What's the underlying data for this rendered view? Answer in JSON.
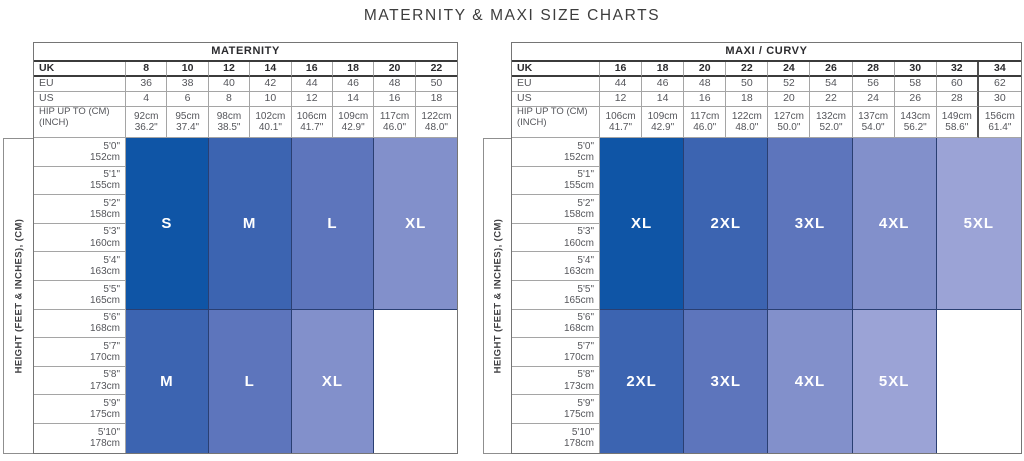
{
  "page": {
    "title": "MATERNITY & MAXI SIZE CHARTS"
  },
  "colors": {
    "size_1": "#0F55A6",
    "size_2": "#3C64B1",
    "size_3": "#5D75BC",
    "size_4": "#8290CB",
    "size_5": "#9BA3D6",
    "block_border": "#2A3F72"
  },
  "chart_data": [
    {
      "type": "table",
      "title": "MATERNITY",
      "size_systems": [
        {
          "label": "UK",
          "values": [
            "8",
            "10",
            "12",
            "14",
            "16",
            "18",
            "20",
            "22"
          ]
        },
        {
          "label": "EU",
          "values": [
            "36",
            "38",
            "40",
            "42",
            "44",
            "46",
            "48",
            "50"
          ]
        },
        {
          "label": "US",
          "values": [
            "4",
            "6",
            "8",
            "10",
            "12",
            "14",
            "16",
            "18"
          ]
        }
      ],
      "hip_label_lines": [
        "HIP UP TO (CM)",
        "(INCH)"
      ],
      "hip_values": [
        [
          "92cm",
          "36.2\""
        ],
        [
          "95cm",
          "37.4\""
        ],
        [
          "98cm",
          "38.5\""
        ],
        [
          "102cm",
          "40.1\""
        ],
        [
          "106cm",
          "41.7\""
        ],
        [
          "109cm",
          "42.9\""
        ],
        [
          "117cm",
          "46.0\""
        ],
        [
          "122cm",
          "48.0\""
        ]
      ],
      "height_axis_label": "HEIGHT (FEET & INCHES), (CM)",
      "height_values": [
        [
          "5'0\"",
          "152cm"
        ],
        [
          "5'1\"",
          "155cm"
        ],
        [
          "5'2\"",
          "158cm"
        ],
        [
          "5'3\"",
          "160cm"
        ],
        [
          "5'4\"",
          "163cm"
        ],
        [
          "5'5\"",
          "165cm"
        ],
        [
          "5'6\"",
          "168cm"
        ],
        [
          "5'7\"",
          "170cm"
        ],
        [
          "5'8\"",
          "173cm"
        ],
        [
          "5'9\"",
          "175cm"
        ],
        [
          "5'10\"",
          "178cm"
        ]
      ],
      "size_blocks": [
        {
          "height_range": "5'0\"-5'5\"",
          "row_span": 6,
          "items": [
            {
              "label": "S",
              "color": "#0F55A6",
              "col_span": 2
            },
            {
              "label": "M",
              "color": "#3C64B1",
              "col_span": 2
            },
            {
              "label": "L",
              "color": "#5D75BC",
              "col_span": 2
            },
            {
              "label": "XL",
              "color": "#8290CB",
              "col_span": 2
            }
          ]
        },
        {
          "height_range": "5'6\"-5'10\"",
          "row_span": 5,
          "items": [
            {
              "label": "M",
              "color": "#3C64B1",
              "col_span": 2
            },
            {
              "label": "L",
              "color": "#5D75BC",
              "col_span": 2
            },
            {
              "label": "XL",
              "color": "#8290CB",
              "col_span": 2
            },
            {
              "label": "",
              "color": "",
              "col_span": 2,
              "empty": true
            }
          ]
        }
      ]
    },
    {
      "type": "table",
      "title": "MAXI / CURVY",
      "thick_separator_after_column": 9,
      "size_systems": [
        {
          "label": "UK",
          "values": [
            "16",
            "18",
            "20",
            "22",
            "24",
            "26",
            "28",
            "30",
            "32",
            "34"
          ]
        },
        {
          "label": "EU",
          "values": [
            "44",
            "46",
            "48",
            "50",
            "52",
            "54",
            "56",
            "58",
            "60",
            "62"
          ]
        },
        {
          "label": "US",
          "values": [
            "12",
            "14",
            "16",
            "18",
            "20",
            "22",
            "24",
            "26",
            "28",
            "30"
          ]
        }
      ],
      "hip_label_lines": [
        "HIP UP TO (CM)",
        "(INCH)"
      ],
      "hip_values": [
        [
          "106cm",
          "41.7\""
        ],
        [
          "109cm",
          "42.9\""
        ],
        [
          "117cm",
          "46.0\""
        ],
        [
          "122cm",
          "48.0\""
        ],
        [
          "127cm",
          "50.0\""
        ],
        [
          "132cm",
          "52.0\""
        ],
        [
          "137cm",
          "54.0\""
        ],
        [
          "143cm",
          "56.2\""
        ],
        [
          "149cm",
          "58.6\""
        ],
        [
          "156cm",
          "61.4\""
        ]
      ],
      "height_axis_label": "HEIGHT (FEET & INCHES), (CM)",
      "height_values": [
        [
          "5'0\"",
          "152cm"
        ],
        [
          "5'1\"",
          "155cm"
        ],
        [
          "5'2\"",
          "158cm"
        ],
        [
          "5'3\"",
          "160cm"
        ],
        [
          "5'4\"",
          "163cm"
        ],
        [
          "5'5\"",
          "165cm"
        ],
        [
          "5'6\"",
          "168cm"
        ],
        [
          "5'7\"",
          "170cm"
        ],
        [
          "5'8\"",
          "173cm"
        ],
        [
          "5'9\"",
          "175cm"
        ],
        [
          "5'10\"",
          "178cm"
        ]
      ],
      "size_blocks": [
        {
          "height_range": "5'0\"-5'5\"",
          "row_span": 6,
          "items": [
            {
              "label": "XL",
              "color": "#0F55A6",
              "col_span": 2
            },
            {
              "label": "2XL",
              "color": "#3C64B1",
              "col_span": 2
            },
            {
              "label": "3XL",
              "color": "#5D75BC",
              "col_span": 2
            },
            {
              "label": "4XL",
              "color": "#8290CB",
              "col_span": 2
            },
            {
              "label": "5XL",
              "color": "#9BA3D6",
              "col_span": 2
            }
          ]
        },
        {
          "height_range": "5'6\"-5'10\"",
          "row_span": 5,
          "items": [
            {
              "label": "2XL",
              "color": "#3C64B1",
              "col_span": 2
            },
            {
              "label": "3XL",
              "color": "#5D75BC",
              "col_span": 2
            },
            {
              "label": "4XL",
              "color": "#8290CB",
              "col_span": 2
            },
            {
              "label": "5XL",
              "color": "#9BA3D6",
              "col_span": 2
            },
            {
              "label": "",
              "color": "",
              "col_span": 2,
              "empty": true
            }
          ]
        }
      ]
    }
  ]
}
